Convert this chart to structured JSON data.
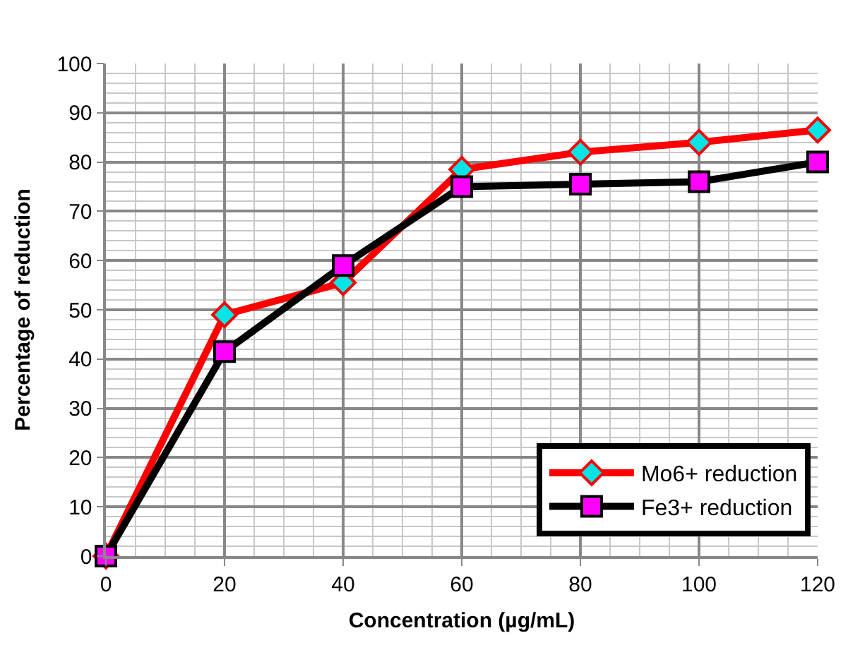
{
  "chart_data": {
    "type": "line",
    "xlabel": "Concentration (µg/mL)",
    "ylabel": "Percentage of reduction",
    "x": [
      0,
      20,
      40,
      60,
      80,
      100,
      120
    ],
    "series": [
      {
        "name": "Mo6+ reduction",
        "color": "#ff0000",
        "marker": "diamond",
        "colors": [
          "#00e5e5",
          "#00e5e5",
          "#00e5e5",
          "#00e5e5",
          "#00e5e5",
          "#00e5e5",
          "#00e5e5"
        ],
        "values": [
          0,
          49,
          55.5,
          78.5,
          82,
          84,
          86.5
        ]
      },
      {
        "name": "Fe3+ reduction",
        "color": "#000000",
        "marker": "square",
        "colors": [
          "#ff00ff",
          "#ff00ff",
          "#ff00ff",
          "#ff00ff",
          "#ff00ff",
          "#ff00ff",
          "#ff00ff"
        ],
        "values": [
          0,
          41.5,
          59,
          75,
          75.5,
          76,
          80
        ]
      }
    ],
    "xlim": [
      0,
      120
    ],
    "xticks": [
      0,
      20,
      40,
      60,
      80,
      100,
      120
    ],
    "ylim": [
      0,
      100
    ],
    "yticks": [
      0,
      10,
      20,
      30,
      40,
      50,
      60,
      70,
      80,
      90,
      100
    ],
    "grid": true,
    "legend": "bottom right",
    "line_style": "solid"
  }
}
